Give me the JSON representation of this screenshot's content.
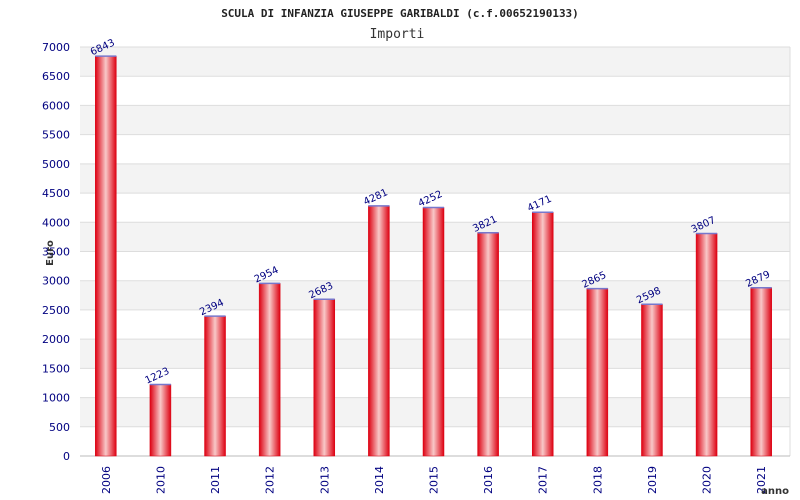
{
  "title": "SCULA DI INFANZIA GIUSEPPE GARIBALDI (c.f.00652190133)",
  "subtitle": "Importi",
  "chart_data": {
    "type": "bar",
    "title": "SCULA DI INFANZIA GIUSEPPE GARIBALDI (c.f.00652190133)",
    "subtitle": "Importi",
    "xlabel": "anno",
    "ylabel": "Euro",
    "categories": [
      "2006",
      "2010",
      "2011",
      "2012",
      "2013",
      "2014",
      "2015",
      "2016",
      "2017",
      "2018",
      "2019",
      "2020",
      "2021"
    ],
    "values": [
      6843,
      1223,
      2394,
      2954,
      2683,
      4281,
      4252,
      3821,
      4171,
      2865,
      2598,
      3807,
      2879
    ],
    "ylim": [
      0,
      7000
    ],
    "ytick_step": 500,
    "grid": true,
    "colors": {
      "bar_edge": "#dd0011",
      "bar_center": "#f8c8c8",
      "bar_top": "#7777cc",
      "band_fill": "#f3f3f3",
      "grid": "#dddddd",
      "text": "#000080"
    }
  }
}
